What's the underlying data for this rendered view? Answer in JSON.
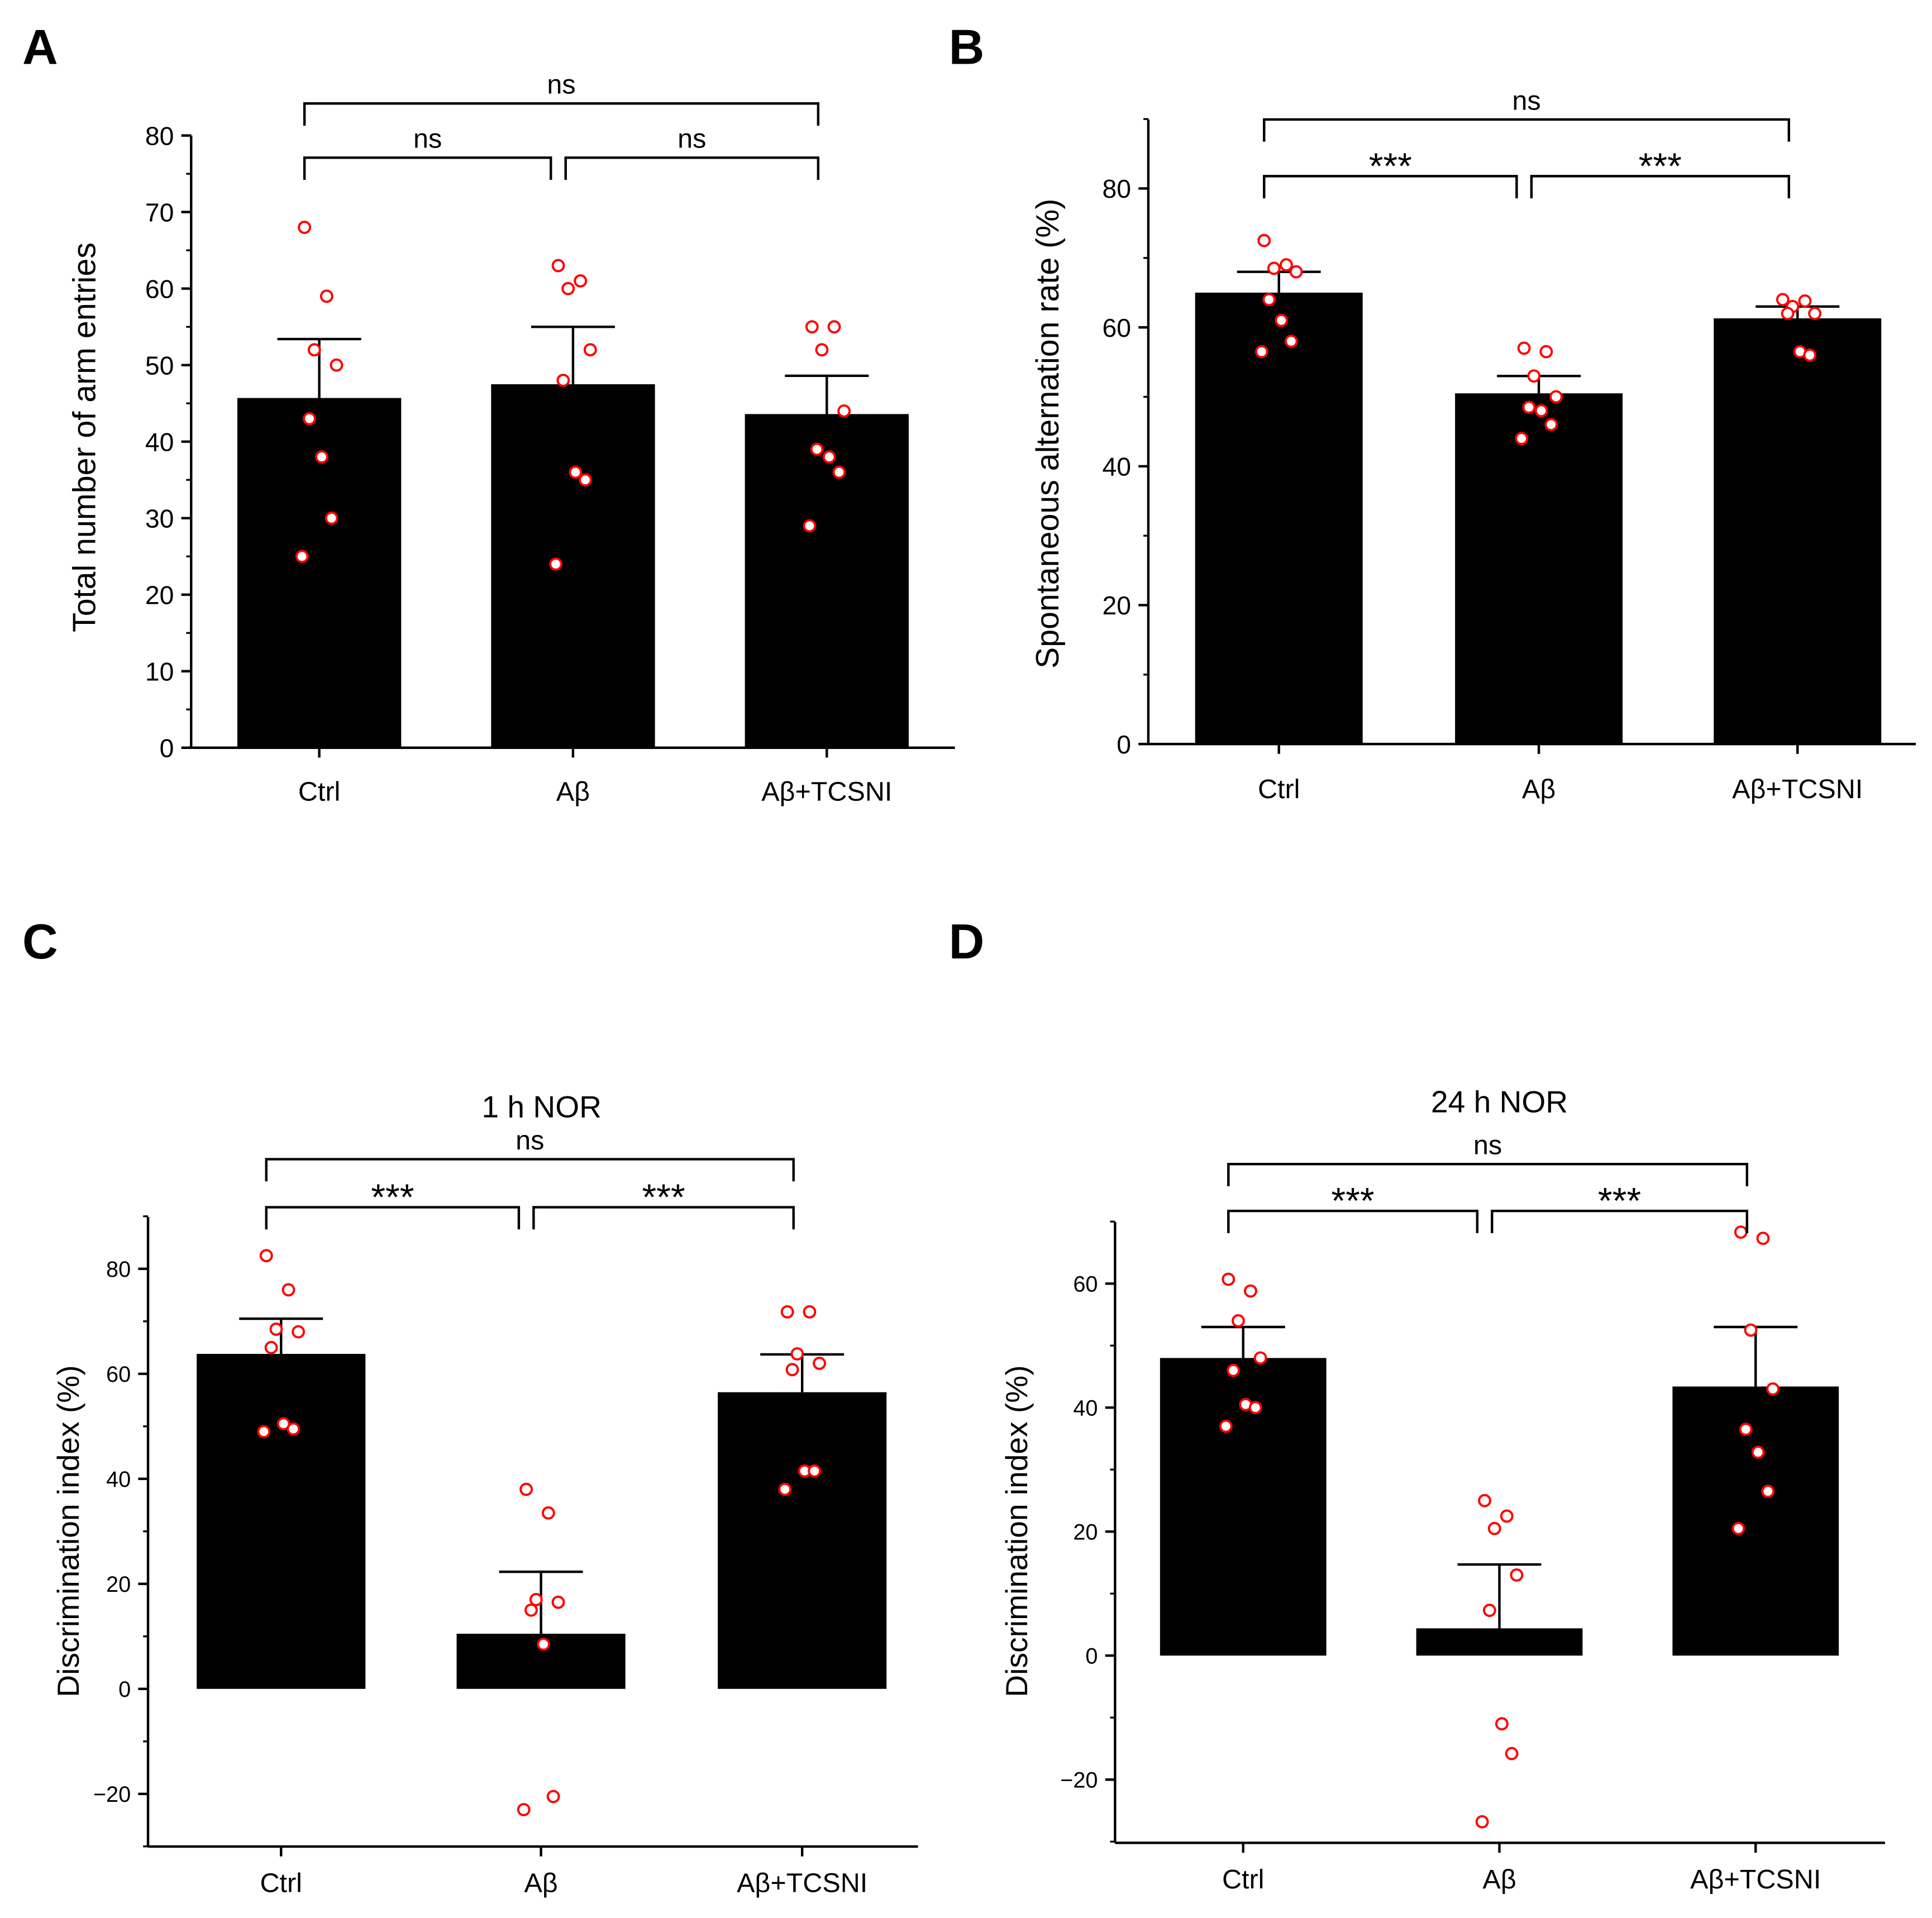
{
  "colors": {
    "bar": "#000000",
    "point_stroke": "#ff0000",
    "point_fill": "#ffffff"
  },
  "chart_data": [
    {
      "panel": "A",
      "type": "bar",
      "title": "",
      "categories": [
        "Ctrl",
        "Aβ",
        "Aβ+TCSNI"
      ],
      "ylabel": "Total number of arm entries",
      "xlabel": "",
      "ylim": [
        0,
        80
      ],
      "yticks": [
        0,
        10,
        20,
        30,
        40,
        50,
        60,
        70,
        80
      ],
      "minor_step": 5,
      "means": [
        45.7,
        47.5,
        43.6
      ],
      "sem_top": [
        53.4,
        55.0,
        48.6
      ],
      "points": [
        [
          68,
          59,
          52,
          50,
          43,
          38,
          30,
          25
        ],
        [
          63,
          61,
          60,
          52,
          48,
          36,
          35,
          24
        ],
        [
          55,
          55,
          52,
          44,
          39,
          38,
          36,
          29
        ]
      ],
      "comparisons": [
        {
          "groups": [
            0,
            1
          ],
          "label": "ns"
        },
        {
          "groups": [
            1,
            2
          ],
          "label": "ns"
        },
        {
          "groups": [
            0,
            2
          ],
          "label": "ns"
        }
      ]
    },
    {
      "panel": "B",
      "type": "bar",
      "title": "",
      "categories": [
        "Ctrl",
        "Aβ",
        "Aβ+TCSNI"
      ],
      "ylabel": "Spontaneous alternation rate (%)",
      "xlabel": "",
      "ylim": [
        0,
        90
      ],
      "yticks": [
        0,
        20,
        40,
        60,
        80
      ],
      "minor_step": 10,
      "means": [
        65.0,
        50.5,
        61.3
      ],
      "sem_top": [
        68.0,
        53.0,
        63.0
      ],
      "points": [
        [
          72.5,
          69,
          68.5,
          68,
          64,
          61,
          58,
          56.5
        ],
        [
          57,
          56.5,
          53,
          50,
          48.5,
          48,
          46,
          44
        ],
        [
          64,
          63.8,
          63,
          62,
          62,
          56.5,
          56
        ]
      ],
      "comparisons": [
        {
          "groups": [
            0,
            1
          ],
          "label": "***"
        },
        {
          "groups": [
            1,
            2
          ],
          "label": "***"
        },
        {
          "groups": [
            0,
            2
          ],
          "label": "ns"
        }
      ]
    },
    {
      "panel": "C",
      "type": "bar",
      "title": "1 h NOR",
      "categories": [
        "Ctrl",
        "Aβ",
        "Aβ+TCSNI"
      ],
      "ylabel": "Discrimination index (%)",
      "xlabel": "",
      "ylim": [
        -30,
        90
      ],
      "yticks": [
        -20,
        0,
        20,
        40,
        60,
        80
      ],
      "minor_step": 10,
      "means": [
        63.8,
        10.5,
        56.5
      ],
      "sem_top": [
        70.5,
        22.3,
        63.7
      ],
      "points": [
        [
          82.5,
          76,
          68.5,
          68,
          65,
          50.5,
          49.5,
          49
        ],
        [
          38,
          33.5,
          17,
          16.5,
          15,
          8.5,
          -20.5,
          -23
        ],
        [
          71.8,
          71.8,
          63.8,
          62,
          60.8,
          41.5,
          41.5,
          38
        ]
      ],
      "comparisons": [
        {
          "groups": [
            0,
            1
          ],
          "label": "***"
        },
        {
          "groups": [
            1,
            2
          ],
          "label": "***"
        },
        {
          "groups": [
            0,
            2
          ],
          "label": "ns"
        }
      ]
    },
    {
      "panel": "D",
      "type": "bar",
      "title": "24 h NOR",
      "categories": [
        "Ctrl",
        "Aβ",
        "Aβ+TCSNI"
      ],
      "ylabel": "Discrimination index (%)",
      "xlabel": "",
      "ylim": [
        -30,
        70
      ],
      "yticks": [
        -20,
        0,
        20,
        40,
        60
      ],
      "minor_step": 10,
      "means": [
        48.0,
        4.4,
        43.4
      ],
      "sem_top": [
        53.0,
        14.7,
        53.0
      ],
      "points": [
        [
          60.7,
          58.8,
          54,
          48,
          46,
          40.5,
          40,
          37
        ],
        [
          25,
          22.5,
          20.5,
          13,
          7.3,
          -11,
          -15.8,
          -26.8
        ],
        [
          68.3,
          67.3,
          52.5,
          43,
          36.5,
          32.8,
          26.5,
          20.5
        ]
      ],
      "comparisons": [
        {
          "groups": [
            0,
            1
          ],
          "label": "***"
        },
        {
          "groups": [
            1,
            2
          ],
          "label": "***"
        },
        {
          "groups": [
            0,
            2
          ],
          "label": "ns"
        }
      ]
    }
  ]
}
